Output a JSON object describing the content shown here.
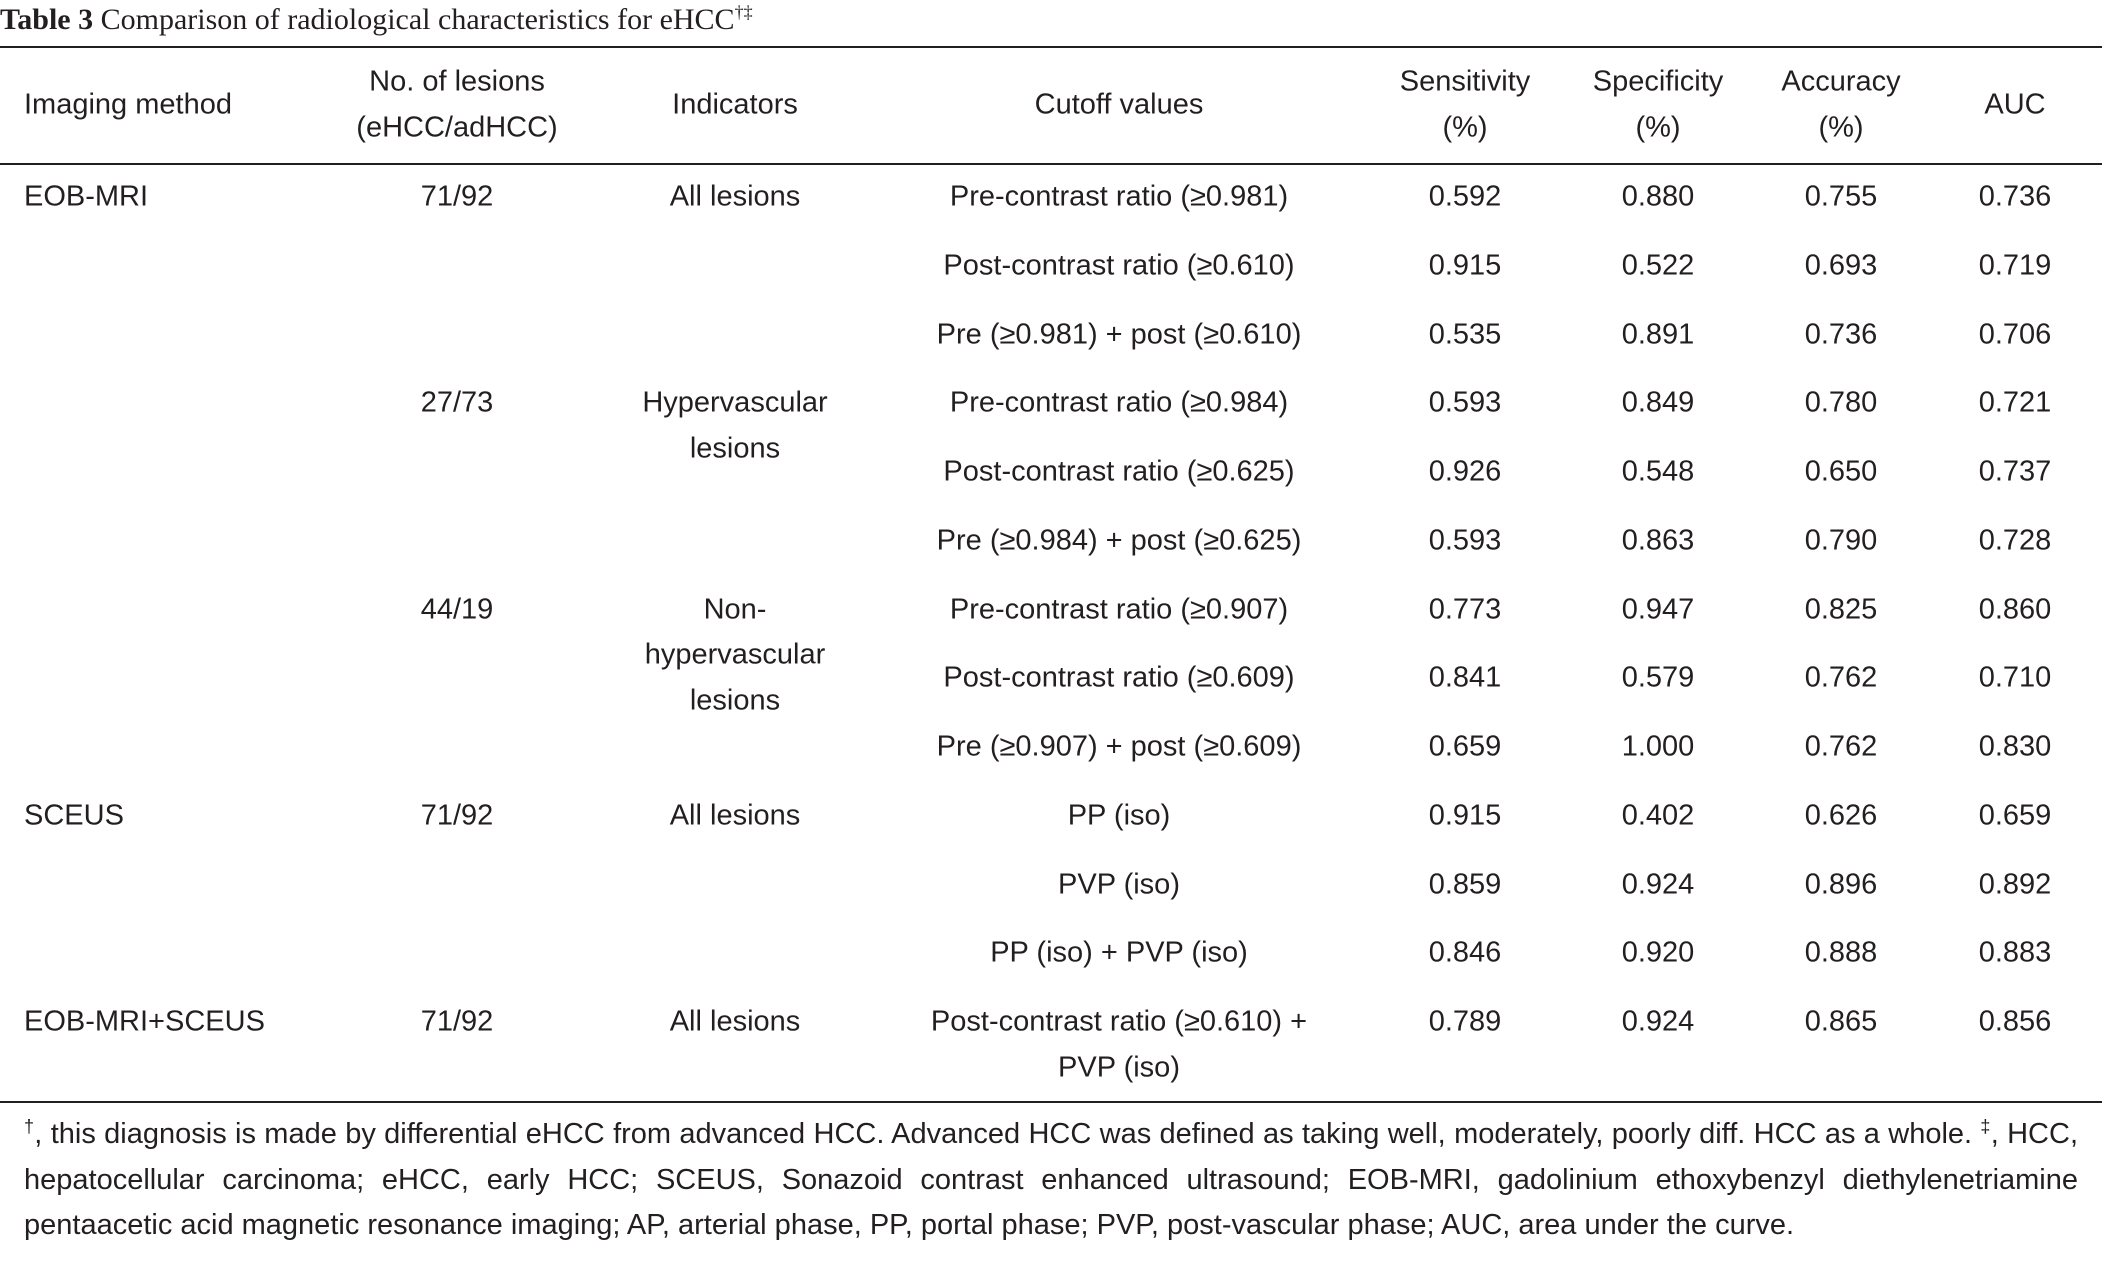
{
  "title": {
    "label": "Table 3",
    "text": "Comparison of radiological characteristics for eHCC",
    "marks": "†‡"
  },
  "headers": [
    [
      "Imaging method"
    ],
    [
      "No. of lesions",
      "(eHCC/adHCC)"
    ],
    [
      "Indicators"
    ],
    [
      "Cutoff values"
    ],
    [
      "Sensitivity",
      "(%)"
    ],
    [
      "Specificity",
      "(%)"
    ],
    [
      "Accuracy",
      "(%)"
    ],
    [
      "AUC"
    ]
  ],
  "groups": [
    {
      "method": "EOB-MRI",
      "subgroups": [
        {
          "lesions": "71/92",
          "indicator": [
            "All lesions"
          ],
          "rows": [
            {
              "cutoff": [
                "Pre-contrast ratio (≥0.981)"
              ],
              "values": [
                "0.592",
                "0.880",
                "0.755",
                "0.736"
              ]
            },
            {
              "cutoff": [
                "Post-contrast ratio (≥0.610)"
              ],
              "values": [
                "0.915",
                "0.522",
                "0.693",
                "0.719"
              ]
            },
            {
              "cutoff": [
                "Pre (≥0.981) + post (≥0.610)"
              ],
              "values": [
                "0.535",
                "0.891",
                "0.736",
                "0.706"
              ]
            }
          ]
        },
        {
          "lesions": "27/73",
          "indicator": [
            "Hypervascular",
            "lesions"
          ],
          "rows": [
            {
              "cutoff": [
                "Pre-contrast ratio (≥0.984)"
              ],
              "values": [
                "0.593",
                "0.849",
                "0.780",
                "0.721"
              ]
            },
            {
              "cutoff": [
                "Post-contrast ratio (≥0.625)"
              ],
              "values": [
                "0.926",
                "0.548",
                "0.650",
                "0.737"
              ]
            },
            {
              "cutoff": [
                "Pre (≥0.984) + post (≥0.625)"
              ],
              "values": [
                "0.593",
                "0.863",
                "0.790",
                "0.728"
              ]
            }
          ]
        },
        {
          "lesions": "44/19",
          "indicator": [
            "Non-",
            "hypervascular",
            "lesions"
          ],
          "rows": [
            {
              "cutoff": [
                "Pre-contrast ratio (≥0.907)"
              ],
              "values": [
                "0.773",
                "0.947",
                "0.825",
                "0.860"
              ]
            },
            {
              "cutoff": [
                "Post-contrast ratio (≥0.609)"
              ],
              "values": [
                "0.841",
                "0.579",
                "0.762",
                "0.710"
              ]
            },
            {
              "cutoff": [
                "Pre (≥0.907) + post (≥0.609)"
              ],
              "values": [
                "0.659",
                "1.000",
                "0.762",
                "0.830"
              ]
            }
          ]
        }
      ]
    },
    {
      "method": "SCEUS",
      "subgroups": [
        {
          "lesions": "71/92",
          "indicator": [
            "All lesions"
          ],
          "rows": [
            {
              "cutoff": [
                "PP (iso)"
              ],
              "values": [
                "0.915",
                "0.402",
                "0.626",
                "0.659"
              ]
            },
            {
              "cutoff": [
                "PVP (iso)"
              ],
              "values": [
                "0.859",
                "0.924",
                "0.896",
                "0.892"
              ]
            },
            {
              "cutoff": [
                "PP (iso) + PVP (iso)"
              ],
              "values": [
                "0.846",
                "0.920",
                "0.888",
                "0.883"
              ]
            }
          ]
        }
      ]
    },
    {
      "method": "EOB-MRI+SCEUS",
      "subgroups": [
        {
          "lesions": "71/92",
          "indicator": [
            "All lesions"
          ],
          "rows": [
            {
              "cutoff": [
                "Post-contrast ratio (≥0.610) +",
                "PVP (iso)"
              ],
              "values": [
                "0.789",
                "0.924",
                "0.865",
                "0.856"
              ]
            }
          ]
        }
      ]
    }
  ],
  "footnote": [
    {
      "sup": "†"
    },
    {
      "text": ", this diagnosis is made by differential eHCC from advanced HCC. Advanced HCC was defined as taking well, moderately, poorly diff. HCC as a whole. "
    },
    {
      "sup": "‡"
    },
    {
      "text": ", HCC, hepatocellular carcinoma; eHCC, early HCC; SCEUS, Sonazoid contrast enhanced ultrasound; EOB-MRI, gadolinium ethoxybenzyl diethylenetriamine pentaacetic acid magnetic resonance imaging; AP, arterial phase, PP, portal phase; PVP, post-vascular phase; AUC, area under the curve."
    }
  ]
}
